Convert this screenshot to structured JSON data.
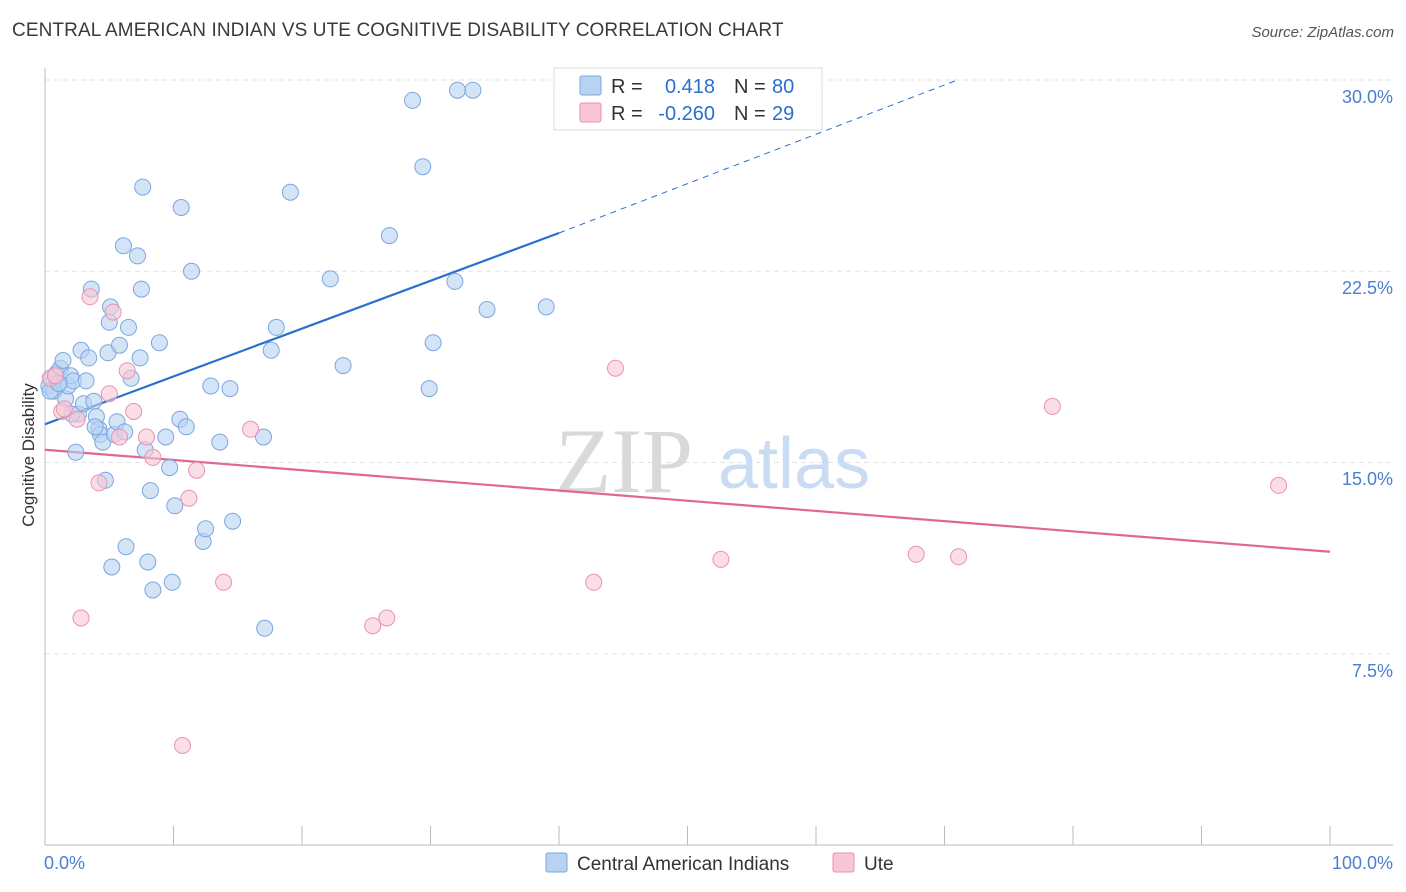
{
  "header": {
    "title": "CENTRAL AMERICAN INDIAN VS UTE COGNITIVE DISABILITY CORRELATION CHART",
    "source": "Source: ZipAtlas.com"
  },
  "watermark": {
    "zip": "ZIP",
    "atlas": "atlas"
  },
  "colors": {
    "blue_fill": "#b8d2f2",
    "blue_stroke": "#7aa7e0",
    "blue_line": "#2a6fd0",
    "pink_fill": "#f8c6d6",
    "pink_stroke": "#e993b1",
    "pink_line": "#e06890",
    "tick_text": "#4a7fd0",
    "grid": "#e3e3e3"
  },
  "stats": [
    {
      "r_label": "R =",
      "r_value": "0.418",
      "n_label": "N =",
      "n_value": "80"
    },
    {
      "r_label": "R =",
      "r_value": "-0.260",
      "n_label": "N =",
      "n_value": "29"
    }
  ],
  "chart_data": {
    "type": "scatter",
    "title": "CENTRAL AMERICAN INDIAN VS UTE COGNITIVE DISABILITY CORRELATION CHART",
    "xlabel": "",
    "ylabel": "Cognitive Disability",
    "x_range": [
      0,
      100
    ],
    "y_range": [
      0,
      31.5
    ],
    "x_tick_labels": [
      "0.0%",
      "100.0%"
    ],
    "y_ticks": [
      7.5,
      15.0,
      22.5,
      30.0
    ],
    "y_tick_labels": [
      "7.5%",
      "15.0%",
      "22.5%",
      "30.0%"
    ],
    "grid": true,
    "legend_position": "bottom-center",
    "series": [
      {
        "name": "Central American Indians",
        "r": 0.418,
        "n": 80,
        "trend": {
          "x0": 0,
          "y0": 16.5,
          "x1": 40,
          "y1": 24.0,
          "dash_to_x": 71,
          "dash_to_y": 30.0
        },
        "points": [
          [
            0.3,
            18.0
          ],
          [
            0.5,
            18.3
          ],
          [
            0.7,
            17.8
          ],
          [
            0.9,
            18.5
          ],
          [
            1.0,
            18.1
          ],
          [
            1.2,
            18.7
          ],
          [
            1.4,
            19.0
          ],
          [
            1.6,
            17.5
          ],
          [
            1.8,
            18.0
          ],
          [
            2.0,
            18.4
          ],
          [
            2.2,
            18.2
          ],
          [
            2.4,
            15.4
          ],
          [
            2.6,
            16.9
          ],
          [
            2.8,
            19.4
          ],
          [
            3.0,
            17.3
          ],
          [
            3.2,
            18.2
          ],
          [
            3.4,
            19.1
          ],
          [
            3.6,
            21.8
          ],
          [
            3.8,
            17.4
          ],
          [
            4.0,
            16.8
          ],
          [
            4.2,
            16.3
          ],
          [
            4.3,
            16.1
          ],
          [
            4.5,
            15.8
          ],
          [
            4.7,
            14.3
          ],
          [
            4.9,
            19.3
          ],
          [
            5.0,
            20.5
          ],
          [
            5.1,
            21.1
          ],
          [
            5.2,
            10.9
          ],
          [
            5.4,
            16.1
          ],
          [
            5.6,
            16.6
          ],
          [
            5.8,
            19.6
          ],
          [
            6.1,
            23.5
          ],
          [
            6.3,
            11.7
          ],
          [
            6.5,
            20.3
          ],
          [
            6.7,
            18.3
          ],
          [
            7.2,
            23.1
          ],
          [
            7.4,
            19.1
          ],
          [
            7.5,
            21.8
          ],
          [
            7.6,
            25.8
          ],
          [
            7.8,
            15.5
          ],
          [
            8.0,
            11.1
          ],
          [
            8.2,
            13.9
          ],
          [
            8.4,
            10.0
          ],
          [
            8.9,
            19.7
          ],
          [
            9.4,
            16.0
          ],
          [
            9.7,
            14.8
          ],
          [
            9.9,
            10.3
          ],
          [
            10.1,
            13.3
          ],
          [
            10.5,
            16.7
          ],
          [
            10.6,
            25.0
          ],
          [
            11.0,
            16.4
          ],
          [
            11.4,
            22.5
          ],
          [
            12.3,
            11.9
          ],
          [
            12.5,
            12.4
          ],
          [
            12.9,
            18.0
          ],
          [
            13.6,
            15.8
          ],
          [
            14.4,
            17.9
          ],
          [
            14.6,
            12.7
          ],
          [
            17.1,
            8.5
          ],
          [
            17.6,
            19.4
          ],
          [
            18.0,
            20.3
          ],
          [
            19.1,
            25.6
          ],
          [
            22.2,
            22.2
          ],
          [
            23.2,
            18.8
          ],
          [
            26.8,
            23.9
          ],
          [
            28.6,
            29.2
          ],
          [
            29.4,
            26.6
          ],
          [
            29.9,
            17.9
          ],
          [
            30.2,
            19.7
          ],
          [
            31.9,
            22.1
          ],
          [
            32.1,
            29.6
          ],
          [
            33.3,
            29.6
          ],
          [
            34.4,
            21.0
          ],
          [
            39.0,
            21.1
          ],
          [
            0.4,
            17.8
          ],
          [
            1.1,
            18.1
          ],
          [
            2.1,
            16.9
          ],
          [
            3.9,
            16.4
          ],
          [
            6.2,
            16.2
          ],
          [
            17.0,
            16.0
          ]
        ]
      },
      {
        "name": "Ute",
        "r": -0.26,
        "n": 29,
        "trend": {
          "x0": 0,
          "y0": 15.5,
          "x1": 100,
          "y1": 11.5
        },
        "points": [
          [
            0.4,
            18.3
          ],
          [
            0.8,
            18.4
          ],
          [
            1.3,
            17.0
          ],
          [
            1.5,
            17.1
          ],
          [
            2.5,
            16.7
          ],
          [
            2.8,
            8.9
          ],
          [
            3.5,
            21.5
          ],
          [
            4.2,
            14.2
          ],
          [
            5.0,
            17.7
          ],
          [
            5.3,
            20.9
          ],
          [
            5.8,
            16.0
          ],
          [
            6.4,
            18.6
          ],
          [
            6.9,
            17.0
          ],
          [
            7.9,
            16.0
          ],
          [
            8.4,
            15.2
          ],
          [
            10.7,
            3.9
          ],
          [
            11.2,
            13.6
          ],
          [
            11.8,
            14.7
          ],
          [
            13.9,
            10.3
          ],
          [
            16.0,
            16.3
          ],
          [
            25.5,
            8.6
          ],
          [
            26.6,
            8.9
          ],
          [
            42.7,
            10.3
          ],
          [
            44.4,
            18.7
          ],
          [
            52.6,
            11.2
          ],
          [
            67.8,
            11.4
          ],
          [
            71.1,
            11.3
          ],
          [
            78.4,
            17.2
          ],
          [
            96.0,
            14.1
          ]
        ]
      }
    ]
  }
}
